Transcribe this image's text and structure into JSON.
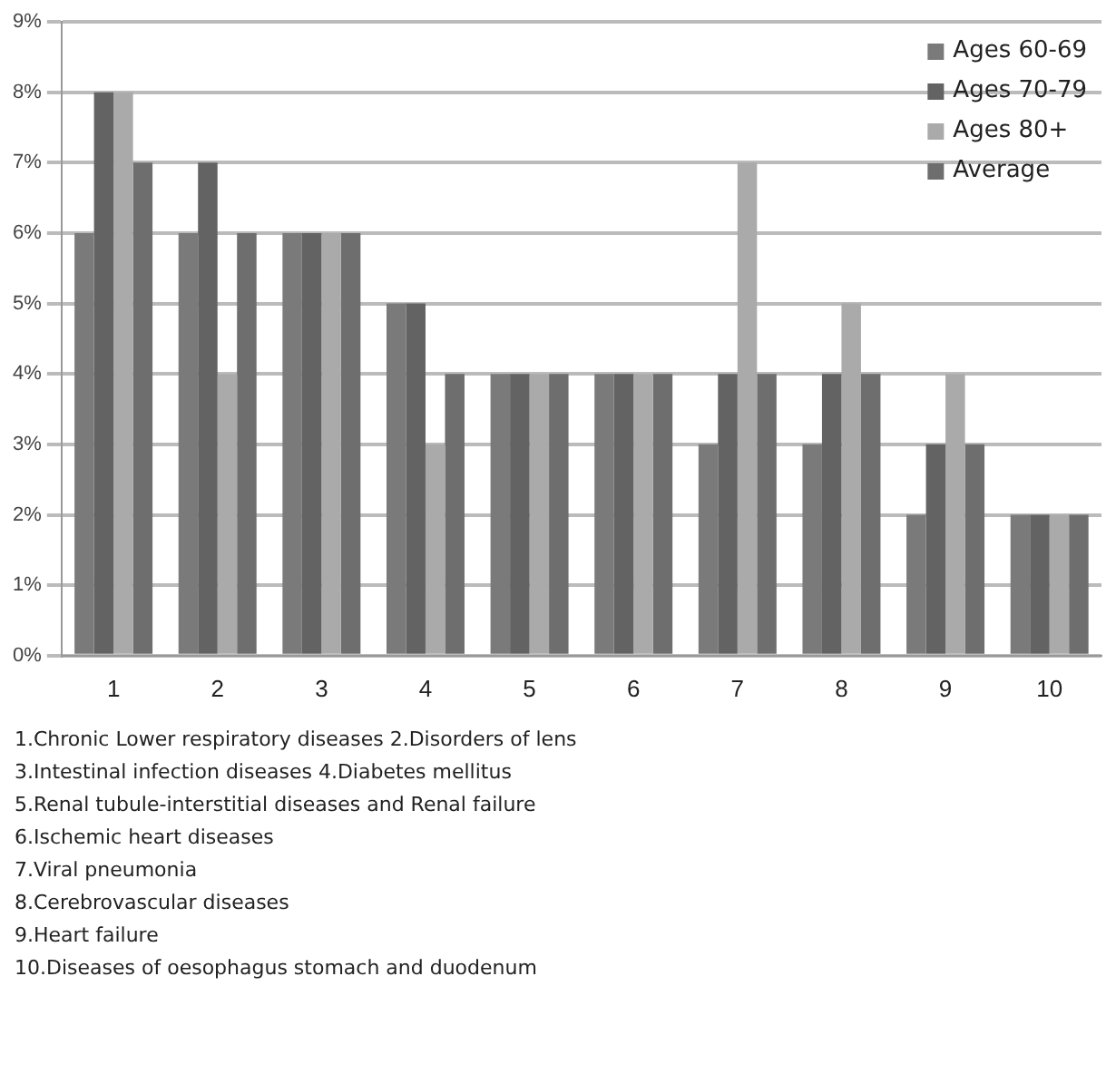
{
  "chart_data": {
    "type": "bar",
    "categories": [
      "1",
      "2",
      "3",
      "4",
      "5",
      "6",
      "7",
      "8",
      "9",
      "10"
    ],
    "series": [
      {
        "name": "Ages 60-69",
        "color": "#7a7a7a",
        "values": [
          6,
          6,
          6,
          5,
          4,
          4,
          3,
          3,
          2,
          2
        ]
      },
      {
        "name": "Ages 70-79",
        "color": "#636363",
        "values": [
          8,
          7,
          6,
          5,
          4,
          4,
          4,
          4,
          3,
          2
        ]
      },
      {
        "name": "Ages 80+",
        "color": "#aaaaaa",
        "values": [
          8,
          4,
          6,
          3,
          4,
          4,
          7,
          5,
          4,
          2
        ]
      },
      {
        "name": "Average",
        "color": "#6e6e6e",
        "values": [
          7,
          6,
          6,
          4,
          4,
          4,
          4,
          4,
          3,
          2
        ]
      }
    ],
    "ylim": [
      0,
      9
    ],
    "yticks": [
      {
        "value": 0,
        "label": "0%"
      },
      {
        "value": 1,
        "label": "1%"
      },
      {
        "value": 2,
        "label": "2%"
      },
      {
        "value": 3,
        "label": "3%"
      },
      {
        "value": 4,
        "label": "4%"
      },
      {
        "value": 5,
        "label": "5%"
      },
      {
        "value": 6,
        "label": "6%"
      },
      {
        "value": 7,
        "label": "7%"
      },
      {
        "value": 8,
        "label": "8%"
      },
      {
        "value": 9,
        "label": "9%"
      }
    ],
    "grid": "y",
    "legend": "top right",
    "annotations": [
      "1.Chronic Lower respiratory diseases 2.Disorders of lens",
      "3.Intestinal infection diseases 4.Diabetes mellitus",
      "5.Renal tubule-interstitial diseases and Renal failure",
      "6.Ischemic heart diseases",
      "7.Viral pneumonia",
      "8.Cerebrovascular diseases",
      "9.Heart failure",
      "10.Diseases of oesophagus stomach and duodenum"
    ]
  }
}
